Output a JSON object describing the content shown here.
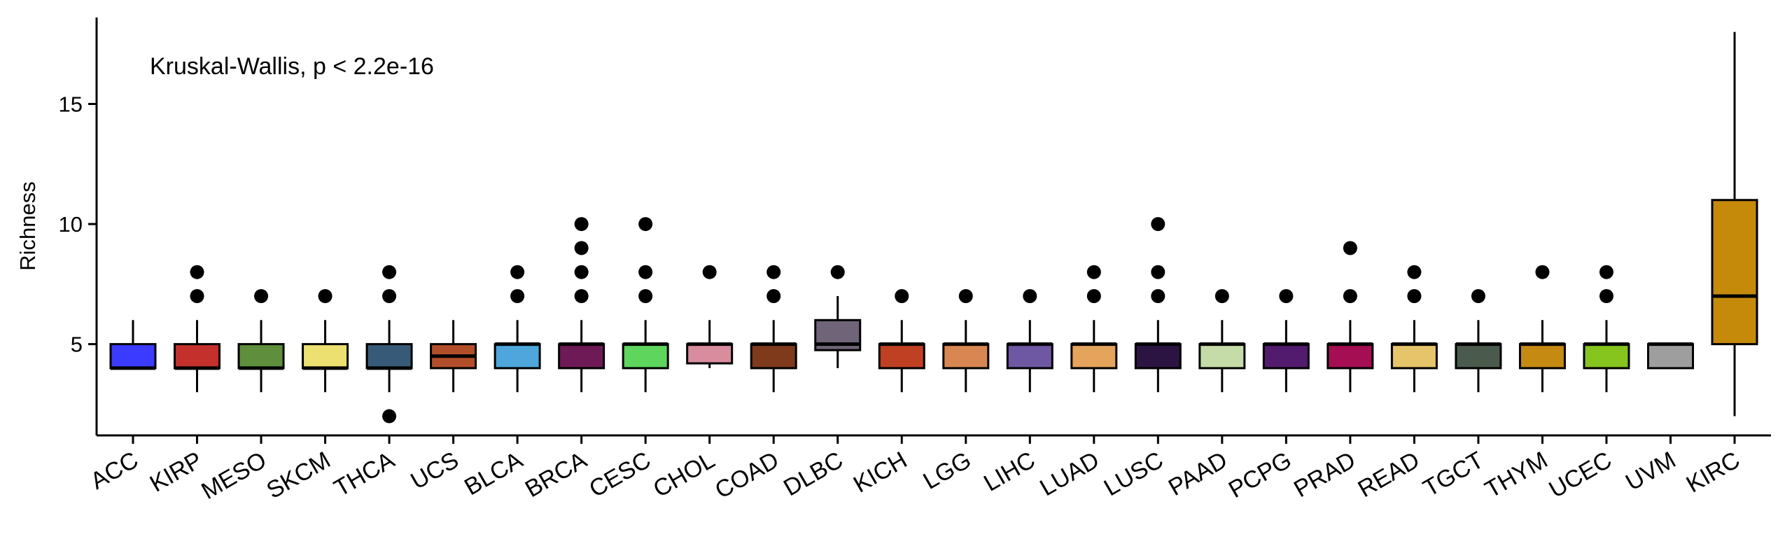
{
  "chart_data": {
    "type": "boxplot",
    "title": "",
    "xlabel": "",
    "ylabel": "Richness",
    "ylim": [
      1.2,
      18.6
    ],
    "yticks": [
      5,
      10,
      15
    ],
    "grid": false,
    "legend": "none",
    "annotation": "Kruskal-Wallis, p < 2.2e-16",
    "categories": [
      "ACC",
      "KIRP",
      "MESO",
      "SKCM",
      "THCA",
      "UCS",
      "BLCA",
      "BRCA",
      "CESC",
      "CHOL",
      "COAD",
      "DLBC",
      "KICH",
      "LGG",
      "LIHC",
      "LUAD",
      "LUSC",
      "PAAD",
      "PCPG",
      "PRAD",
      "READ",
      "TGCT",
      "THYM",
      "UCEC",
      "UVM",
      "KIRC"
    ],
    "series": [
      {
        "category": "ACC",
        "color": "#3b3bff",
        "whisker_low": 4,
        "q1": 4,
        "median": 4,
        "q3": 5,
        "whisker_high": 6,
        "outliers": []
      },
      {
        "category": "KIRP",
        "color": "#c4302b",
        "whisker_low": 3,
        "q1": 4,
        "median": 4,
        "q3": 5,
        "whisker_high": 6,
        "outliers": [
          7,
          8
        ]
      },
      {
        "category": "MESO",
        "color": "#5f8f3c",
        "whisker_low": 3,
        "q1": 4,
        "median": 4,
        "q3": 5,
        "whisker_high": 6,
        "outliers": [
          7
        ]
      },
      {
        "category": "SKCM",
        "color": "#ece170",
        "whisker_low": 3,
        "q1": 4,
        "median": 4,
        "q3": 5,
        "whisker_high": 6,
        "outliers": [
          7
        ]
      },
      {
        "category": "THCA",
        "color": "#375a78",
        "whisker_low": 3,
        "q1": 4,
        "median": 4,
        "q3": 5,
        "whisker_high": 6,
        "outliers": [
          2,
          7,
          8
        ]
      },
      {
        "category": "UCS",
        "color": "#b34e2a",
        "whisker_low": 3,
        "q1": 4,
        "median": 4.5,
        "q3": 5,
        "whisker_high": 6,
        "outliers": []
      },
      {
        "category": "BLCA",
        "color": "#4ea6dc",
        "whisker_low": 3,
        "q1": 4,
        "median": 5,
        "q3": 5,
        "whisker_high": 6,
        "outliers": [
          7,
          8
        ]
      },
      {
        "category": "BRCA",
        "color": "#6e1a56",
        "whisker_low": 3,
        "q1": 4,
        "median": 5,
        "q3": 5,
        "whisker_high": 6,
        "outliers": [
          7,
          8,
          9,
          10
        ]
      },
      {
        "category": "CESC",
        "color": "#5ed65e",
        "whisker_low": 3,
        "q1": 4,
        "median": 5,
        "q3": 5,
        "whisker_high": 6,
        "outliers": [
          7,
          8,
          10
        ]
      },
      {
        "category": "CHOL",
        "color": "#d88c9e",
        "whisker_low": 4,
        "q1": 4.2,
        "median": 5,
        "q3": 5,
        "whisker_high": 6,
        "outliers": [
          8
        ]
      },
      {
        "category": "COAD",
        "color": "#7f3a1c",
        "whisker_low": 3,
        "q1": 4,
        "median": 5,
        "q3": 5,
        "whisker_high": 6,
        "outliers": [
          7,
          8
        ]
      },
      {
        "category": "DLBC",
        "color": "#6f6478",
        "whisker_low": 4,
        "q1": 4.75,
        "median": 5,
        "q3": 6,
        "whisker_high": 7,
        "outliers": [
          8
        ]
      },
      {
        "category": "KICH",
        "color": "#c04024",
        "whisker_low": 3,
        "q1": 4,
        "median": 5,
        "q3": 5,
        "whisker_high": 6,
        "outliers": [
          7
        ]
      },
      {
        "category": "LGG",
        "color": "#d98752",
        "whisker_low": 3,
        "q1": 4,
        "median": 5,
        "q3": 5,
        "whisker_high": 6,
        "outliers": [
          7
        ]
      },
      {
        "category": "LIHC",
        "color": "#6e58a3",
        "whisker_low": 3,
        "q1": 4,
        "median": 5,
        "q3": 5,
        "whisker_high": 6,
        "outliers": [
          7
        ]
      },
      {
        "category": "LUAD",
        "color": "#e5a45c",
        "whisker_low": 3,
        "q1": 4,
        "median": 5,
        "q3": 5,
        "whisker_high": 6,
        "outliers": [
          7,
          8
        ]
      },
      {
        "category": "LUSC",
        "color": "#2c1442",
        "whisker_low": 3,
        "q1": 4,
        "median": 5,
        "q3": 5,
        "whisker_high": 6,
        "outliers": [
          7,
          8,
          10
        ]
      },
      {
        "category": "PAAD",
        "color": "#c6dca8",
        "whisker_low": 3,
        "q1": 4,
        "median": 5,
        "q3": 5,
        "whisker_high": 6,
        "outliers": [
          7
        ]
      },
      {
        "category": "PCPG",
        "color": "#531b6e",
        "whisker_low": 3,
        "q1": 4,
        "median": 5,
        "q3": 5,
        "whisker_high": 6,
        "outliers": [
          7
        ]
      },
      {
        "category": "PRAD",
        "color": "#a50e52",
        "whisker_low": 3,
        "q1": 4,
        "median": 5,
        "q3": 5,
        "whisker_high": 6,
        "outliers": [
          7,
          9
        ]
      },
      {
        "category": "READ",
        "color": "#e6c46a",
        "whisker_low": 3,
        "q1": 4,
        "median": 5,
        "q3": 5,
        "whisker_high": 6,
        "outliers": [
          7,
          8
        ]
      },
      {
        "category": "TGCT",
        "color": "#4a5a4c",
        "whisker_low": 3,
        "q1": 4,
        "median": 5,
        "q3": 5,
        "whisker_high": 6,
        "outliers": [
          7
        ]
      },
      {
        "category": "THYM",
        "color": "#c58a12",
        "whisker_low": 3,
        "q1": 4,
        "median": 5,
        "q3": 5,
        "whisker_high": 6,
        "outliers": [
          8
        ]
      },
      {
        "category": "UCEC",
        "color": "#86c41e",
        "whisker_low": 3,
        "q1": 4,
        "median": 5,
        "q3": 5,
        "whisker_high": 6,
        "outliers": [
          7,
          8
        ]
      },
      {
        "category": "UVM",
        "color": "#9e9e9e",
        "whisker_low": 4,
        "q1": 4,
        "median": 5,
        "q3": 5,
        "whisker_high": 5,
        "outliers": []
      },
      {
        "category": "KIRC",
        "color": "#c58a0a",
        "whisker_low": 2,
        "q1": 5,
        "median": 7,
        "q3": 11,
        "whisker_high": 18,
        "outliers": []
      }
    ]
  }
}
